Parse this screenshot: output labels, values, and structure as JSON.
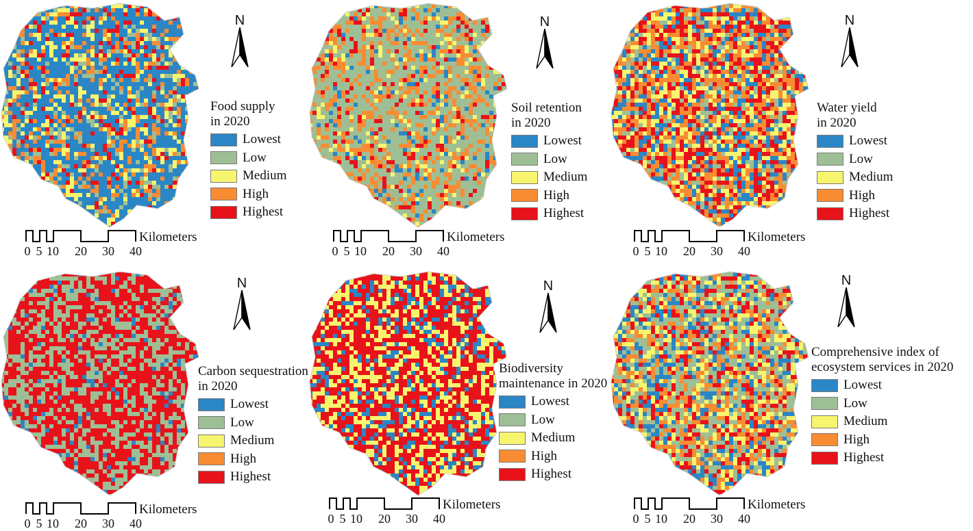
{
  "colors": {
    "lowest": "#2b86c5",
    "low": "#9ebf95",
    "medium": "#f7f56e",
    "high": "#f88c32",
    "highest": "#e8121b"
  },
  "legend_classes": [
    "Lowest",
    "Low",
    "Medium",
    "High",
    "Highest"
  ],
  "north_label": "N",
  "scale": {
    "units": "Kilometers",
    "ticks": [
      "0",
      "5",
      "10",
      "20",
      "30",
      "40"
    ]
  },
  "maps": [
    {
      "title_lines": [
        "Food supply",
        "in 2020"
      ],
      "weights": [
        0.5,
        0.1,
        0.15,
        0.15,
        0.1
      ],
      "shares_note": "dominant: Lowest"
    },
    {
      "title_lines": [
        "Soil retention",
        "in 2020"
      ],
      "weights": [
        0.06,
        0.54,
        0.08,
        0.24,
        0.08
      ],
      "shares_note": "dominant: Low"
    },
    {
      "title_lines": [
        "Water yield",
        "in 2020"
      ],
      "weights": [
        0.18,
        0.1,
        0.2,
        0.27,
        0.25
      ],
      "shares_note": "mixed"
    },
    {
      "title_lines": [
        "Carbon sequestration",
        "in 2020"
      ],
      "weights": [
        0.05,
        0.4,
        0.0,
        0.0,
        0.55
      ],
      "shares_note": "dominant: Highest"
    },
    {
      "title_lines": [
        "Biodiversity",
        "maintenance in 2020"
      ],
      "weights": [
        0.18,
        0.0,
        0.32,
        0.0,
        0.5
      ],
      "shares_note": "dominant: Highest"
    },
    {
      "title_lines": [
        "Comprehensive index of",
        "ecosystem services in 2020"
      ],
      "weights": [
        0.16,
        0.28,
        0.18,
        0.2,
        0.18
      ],
      "shares_note": "mixed"
    }
  ]
}
